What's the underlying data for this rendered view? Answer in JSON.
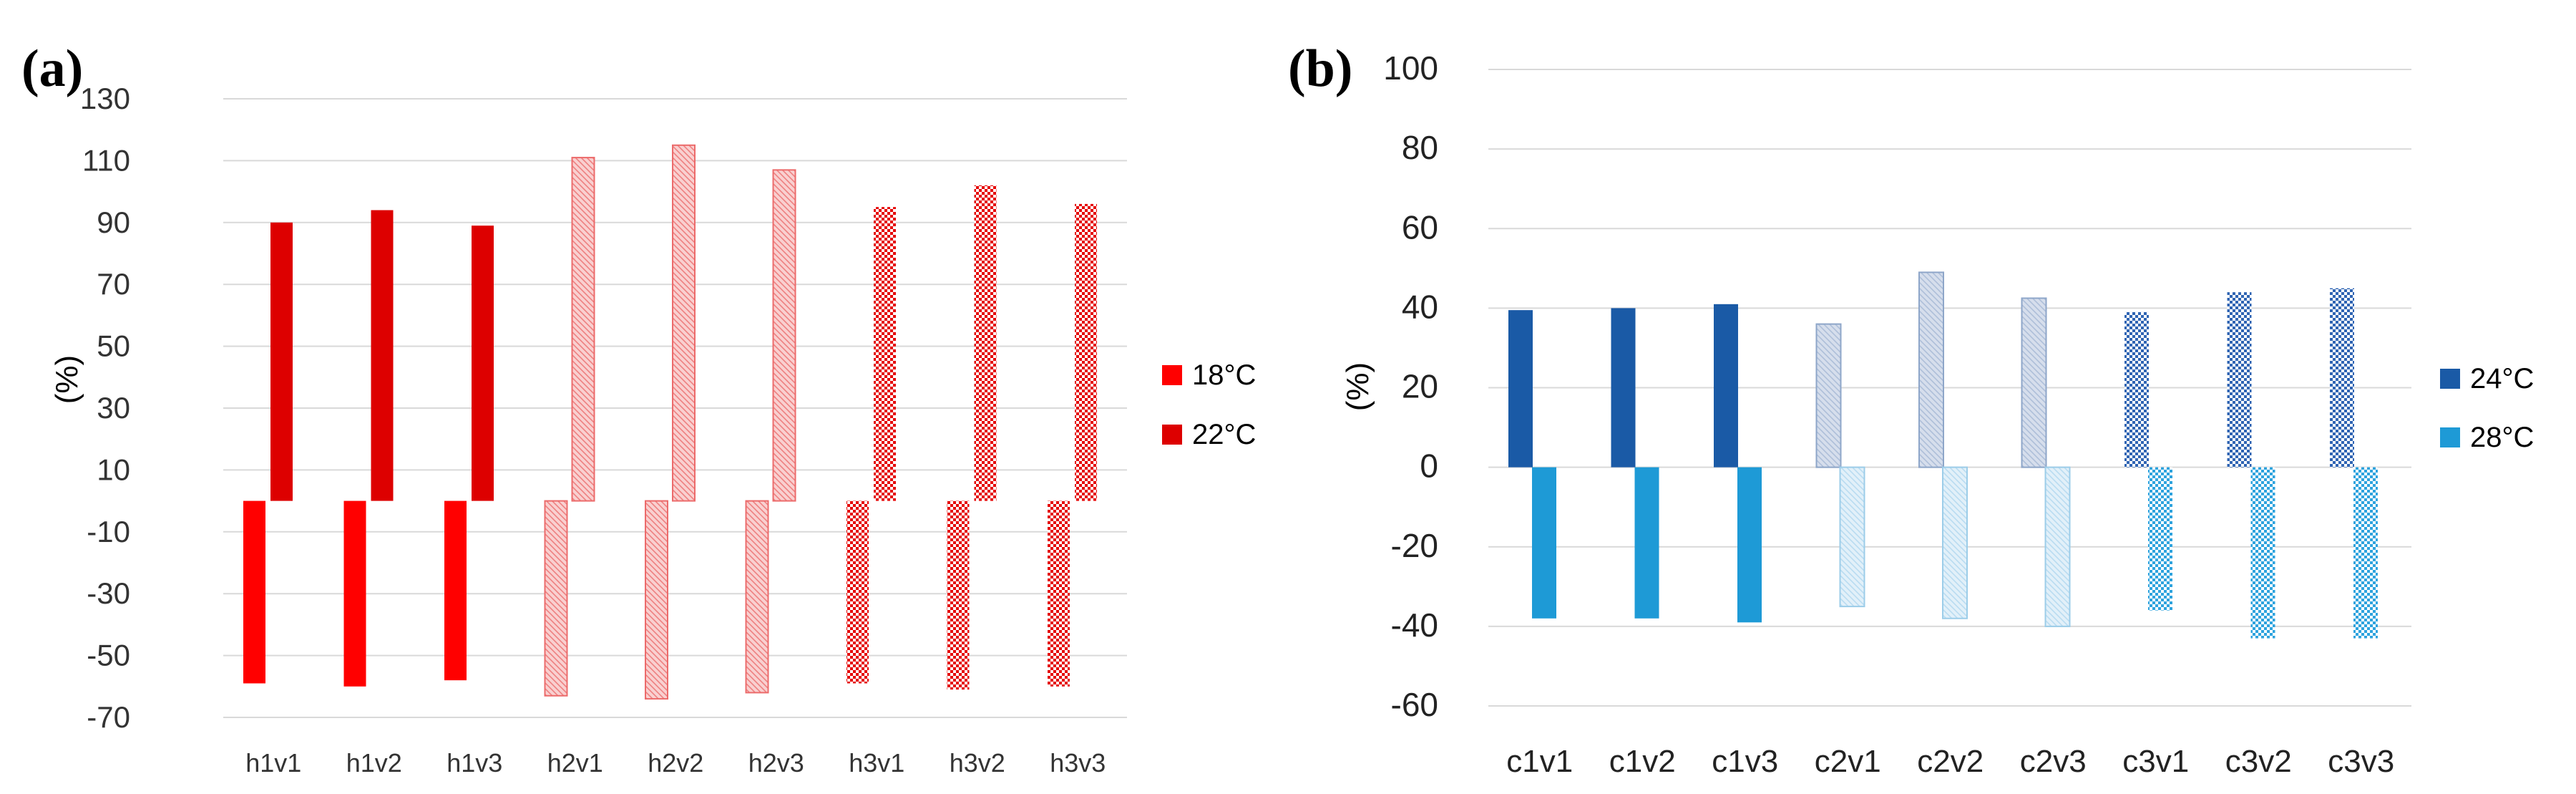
{
  "chart_data": [
    {
      "type": "bar",
      "panel_label": "(a)",
      "ylabel": "(%)",
      "ylim": [
        -70,
        130
      ],
      "yticks": [
        -70,
        -50,
        -30,
        -10,
        10,
        30,
        50,
        70,
        90,
        110,
        130
      ],
      "grid": true,
      "legend_position": "right",
      "categories": [
        "h1v1",
        "h1v2",
        "h1v3",
        "h2v1",
        "h2v2",
        "h2v3",
        "h3v1",
        "h3v2",
        "h3v3"
      ],
      "series": [
        {
          "name": "18°C",
          "values": [
            -59,
            -60,
            -58,
            -63,
            -64,
            -62,
            -59,
            -61,
            -60
          ]
        },
        {
          "name": "22°C",
          "values": [
            90,
            94,
            89,
            111,
            115,
            107,
            95,
            102,
            96
          ]
        }
      ],
      "colors": {
        "18°C": "#ff0000",
        "22°C": "#dd0000",
        "h2_fill": "#f7c2c2",
        "h2_stroke": "#ec6b6b"
      }
    },
    {
      "type": "bar",
      "panel_label": "(b)",
      "ylabel": "(%)",
      "ylim": [
        -60,
        100
      ],
      "yticks": [
        -60,
        -40,
        -20,
        0,
        20,
        40,
        60,
        80,
        100
      ],
      "grid": true,
      "legend_position": "right",
      "categories": [
        "c1v1",
        "c1v2",
        "c1v3",
        "c2v1",
        "c2v2",
        "c2v3",
        "c3v1",
        "c3v2",
        "c3v3"
      ],
      "series": [
        {
          "name": "24°C",
          "values": [
            39.5,
            40,
            41,
            36,
            49,
            42.5,
            39,
            44,
            45
          ]
        },
        {
          "name": "28°C",
          "values": [
            -38,
            -38,
            -39,
            -35,
            -38,
            -40,
            -36,
            -43,
            -43
          ]
        }
      ],
      "colors": {
        "24°C": "#1a5aa6",
        "28°C": "#1e9ad6",
        "c2_24_fill": "#c6d3e6",
        "c2_28_fill": "#d3e9f6",
        "c3_24": "#2e64b4",
        "c3_28": "#2aa0dc"
      }
    }
  ]
}
